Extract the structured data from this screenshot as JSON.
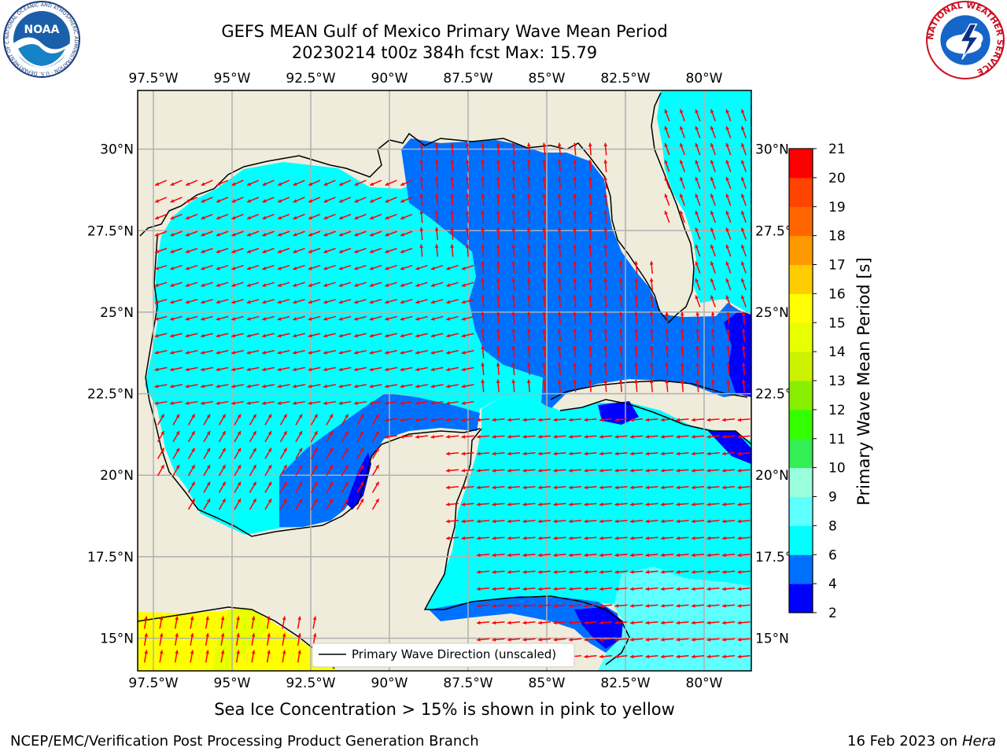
{
  "title": {
    "line1": "GEFS MEAN Gulf of Mexico Primary Wave Mean Period",
    "line2": "20230214 t00z 384h fcst   Max: 15.79"
  },
  "map": {
    "lon_labels": [
      "97.5°W",
      "95°W",
      "92.5°W",
      "90°W",
      "87.5°W",
      "85°W",
      "82.5°W",
      "80°W"
    ],
    "lat_labels": [
      "30°N",
      "27.5°N",
      "25°N",
      "22.5°N",
      "20°N",
      "17.5°N",
      "15°N"
    ],
    "lon_range": [
      -98,
      -78.5
    ],
    "lat_range": [
      14,
      31.8
    ],
    "legend_label": "Primary Wave Direction (unscaled)",
    "land_color": "#efecdc",
    "arrow_color": "#ff0000"
  },
  "colorbar": {
    "label": "Primary Wave Mean Period [s]",
    "ticks": [
      "21",
      "20",
      "19",
      "18",
      "17",
      "16",
      "15",
      "14",
      "13",
      "12",
      "11",
      "10",
      "9",
      "8",
      "6",
      "4",
      "2"
    ],
    "levels": [
      {
        "from": 2,
        "to": 4,
        "color": "#0000ff"
      },
      {
        "from": 4,
        "to": 6,
        "color": "#0070ff"
      },
      {
        "from": 6,
        "to": 8,
        "color": "#00ffff"
      },
      {
        "from": 8,
        "to": 9,
        "color": "#5effff"
      },
      {
        "from": 9,
        "to": 10,
        "color": "#99ffdd"
      },
      {
        "from": 10,
        "to": 11,
        "color": "#33ee55"
      },
      {
        "from": 11,
        "to": 12,
        "color": "#33ff00"
      },
      {
        "from": 12,
        "to": 13,
        "color": "#88ee00"
      },
      {
        "from": 13,
        "to": 14,
        "color": "#ccf200"
      },
      {
        "from": 14,
        "to": 15,
        "color": "#e8ff00"
      },
      {
        "from": 15,
        "to": 16,
        "color": "#ffff00"
      },
      {
        "from": 16,
        "to": 17,
        "color": "#ffcc00"
      },
      {
        "from": 17,
        "to": 18,
        "color": "#ff9900"
      },
      {
        "from": 18,
        "to": 19,
        "color": "#ff6600"
      },
      {
        "from": 19,
        "to": 20,
        "color": "#ff4400"
      },
      {
        "from": 20,
        "to": 21,
        "color": "#ff0000"
      }
    ]
  },
  "note": "Sea Ice Concentration > 15% is shown in pink to yellow",
  "credit": "NCEP/EMC/Verification Post Processing Product Generation Branch",
  "date": "16 Feb 2023 on",
  "host": "Hera",
  "logos": {
    "noaa_text": "NOAA",
    "noaa_ring": "NATIONAL OCEANIC AND ATMOSPHERIC ADMINISTRATION · U.S. DEPARTMENT OF COMMERCE",
    "nws_ring": "NATIONAL WEATHER SERVICE"
  }
}
